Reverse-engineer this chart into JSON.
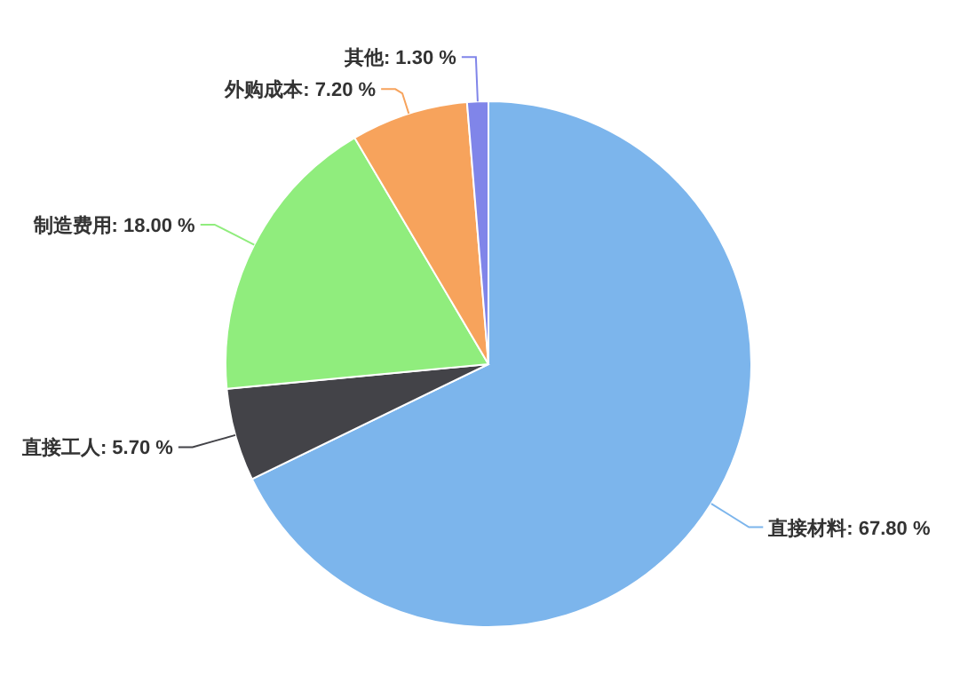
{
  "chart_data": {
    "type": "pie",
    "categories": [
      "直接材料",
      "直接工人",
      "制造费用",
      "外购成本",
      "其他"
    ],
    "values": [
      67.8,
      5.7,
      18.0,
      7.2,
      1.3
    ],
    "value_labels": [
      "67.80 %",
      "5.70 %",
      "18.00 %",
      "7.20 %",
      "1.30 %"
    ],
    "colors": [
      "#7cb5ec",
      "#434348",
      "#90ed7d",
      "#f7a35c",
      "#8085e9"
    ]
  }
}
